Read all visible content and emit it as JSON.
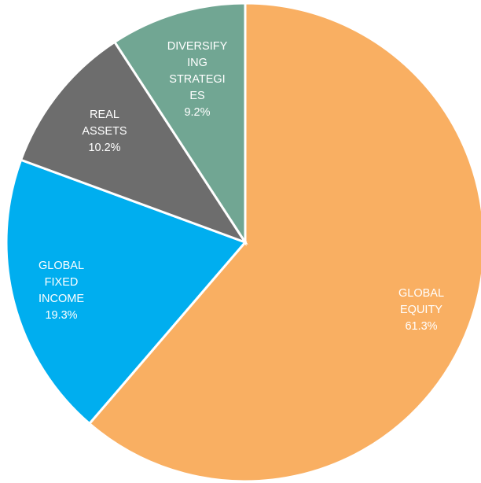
{
  "chart_data": {
    "type": "pie",
    "start_angle_deg": 0,
    "direction": "clockwise",
    "slices": [
      {
        "label_lines": [
          "GLOBAL",
          "EQUITY"
        ],
        "value_label": "61.3%",
        "value": 61.3,
        "color": "#F9AF62"
      },
      {
        "label_lines": [
          "GLOBAL",
          "FIXED",
          "INCOME"
        ],
        "value_label": "19.3%",
        "value": 19.3,
        "color": "#00AEEF"
      },
      {
        "label_lines": [
          "REAL",
          "ASSETS"
        ],
        "value_label": "10.2%",
        "value": 10.2,
        "color": "#6D6D6D"
      },
      {
        "label_lines": [
          "DIVERSIFY",
          "ING",
          "STRATEGI",
          "ES"
        ],
        "value_label": "9.2%",
        "value": 9.2,
        "color": "#71A693"
      }
    ]
  }
}
